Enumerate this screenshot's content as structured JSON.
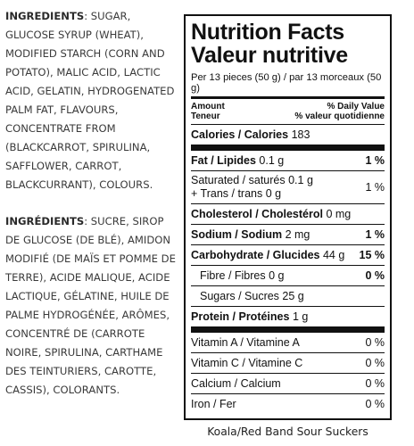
{
  "ingredients_en": {
    "label": "INGREDIENTS",
    "text": ": SUGAR, GLUCOSE SYRUP (WHEAT), MODIFIED STARCH (CORN AND POTATO), MALIC ACID, LACTIC ACID, GELATIN, HYDROGENATED PALM FAT, FLAVOURS, CONCENTRATE FROM (BLACKCARROT, SPIRULINA, SAFFLOWER, CARROT, BLACKCURRANT), COLOURS."
  },
  "ingredients_fr": {
    "label": "INGRÉDIENTS",
    "text": ": SUCRE, SIROP DE GLUCOSE (DE BLÉ), AMIDON MODIFIÉ (DE MAÏS ET POMME DE TERRE), ACIDE MALIQUE, ACIDE LACTIQUE, GÉLATINE, HUILE DE PALME HYDROGÉNÉE, ARÔMES, CONCENTRÉ DE (CARROTE NOIRE, SPIRULINA, CARTHAME DES TEINTURIERS, CAROTTE, CASSIS), COLORANTS."
  },
  "panel": {
    "title_en": "Nutrition Facts",
    "title_fr": "Valeur nutritive",
    "serving": "Per 13 pieces (50 g) / par 13 morceaux (50 g)",
    "amount_en": "Amount",
    "amount_fr": "Teneur",
    "dv_en": "% Daily Value",
    "dv_fr": "% valeur quotidienne",
    "calories_label": "Calories / Calories",
    "calories_value": "183",
    "fat_label": "Fat / Lipides",
    "fat_value": "0.1 g",
    "fat_dv": "1 %",
    "sat_label": "Saturated / saturés 0.1 g",
    "trans_label": "+ Trans / trans 0 g",
    "sat_dv": "1 %",
    "chol_label": "Cholesterol / Cholestérol",
    "chol_value": "0 mg",
    "sodium_label": "Sodium / Sodium",
    "sodium_value": "2 mg",
    "sodium_dv": "1 %",
    "carb_label": "Carbohydrate / Glucides",
    "carb_value": "44 g",
    "carb_dv": "15 %",
    "fibre_label": "Fibre / Fibres 0 g",
    "fibre_dv": "0 %",
    "sugars_label": "Sugars / Sucres 25 g",
    "protein_label": "Protein / Protéines",
    "protein_value": "1 g",
    "vita_label": "Vitamin A / Vitamine A",
    "vita_dv": "0 %",
    "vitc_label": "Vitamin C / Vitamine C",
    "vitc_dv": "0 %",
    "calcium_label": "Calcium / Calcium",
    "calcium_dv": "0 %",
    "iron_label": "Iron / Fer",
    "iron_dv": "0 %"
  },
  "caption": "Koala/Red Band Sour Suckers"
}
